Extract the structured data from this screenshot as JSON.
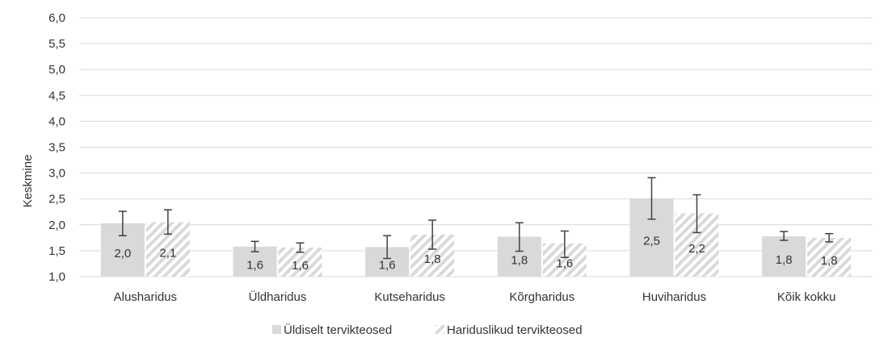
{
  "chart_data": {
    "type": "bar",
    "ylabel": "Keskmine",
    "xlabel": "",
    "ylim": [
      1.0,
      6.0
    ],
    "yticks": [
      "1,0",
      "1,5",
      "2,0",
      "2,5",
      "3,0",
      "3,5",
      "4,0",
      "4,5",
      "5,0",
      "5,5",
      "6,0"
    ],
    "ytick_values": [
      1.0,
      1.5,
      2.0,
      2.5,
      3.0,
      3.5,
      4.0,
      4.5,
      5.0,
      5.5,
      6.0
    ],
    "grid": true,
    "legend_position": "bottom",
    "categories": [
      "Alusharidus",
      "Üldharidus",
      "Kutseharidus",
      "Kõrgharidus",
      "Huviharidus",
      "Kõik kokku"
    ],
    "series": [
      {
        "name": "Üldiselt tervikteosed",
        "pattern": "solid",
        "color": "#d9d9d9",
        "values": [
          2.03,
          1.58,
          1.57,
          1.77,
          2.51,
          1.78
        ],
        "labels": [
          "2,0",
          "1,6",
          "1,6",
          "1,8",
          "2,5",
          "1,8"
        ],
        "err_low": [
          1.79,
          1.48,
          1.35,
          1.49,
          2.11,
          1.7
        ],
        "err_high": [
          2.26,
          1.68,
          1.79,
          2.04,
          2.91,
          1.87
        ]
      },
      {
        "name": "Hariduslikud tervikteosed",
        "pattern": "hatched",
        "color": "#d9d9d9",
        "values": [
          2.05,
          1.56,
          1.81,
          1.64,
          2.22,
          1.75
        ],
        "labels": [
          "2,1",
          "1,6",
          "1,8",
          "1,6",
          "2,2",
          "1,8"
        ],
        "err_low": [
          1.82,
          1.47,
          1.53,
          1.37,
          1.85,
          1.67
        ],
        "err_high": [
          2.29,
          1.65,
          2.09,
          1.88,
          2.58,
          1.83
        ]
      }
    ],
    "colors": {
      "gridline": "#d9d9d9",
      "errorbar": "#404040",
      "text": "#333333"
    }
  }
}
